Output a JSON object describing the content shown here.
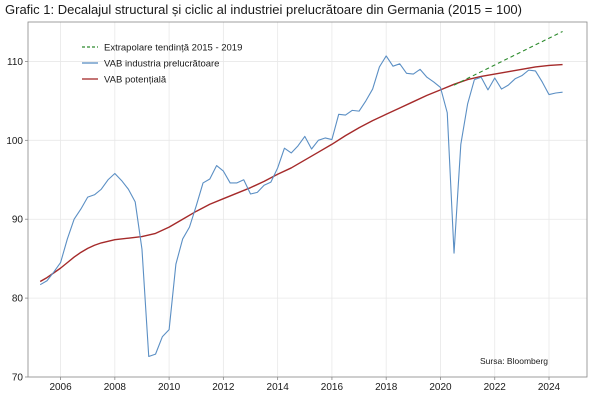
{
  "chart_data": {
    "type": "line",
    "title": "Grafic 1: Decalajul structural și ciclic al industriei prelucrătoare din Germania (2015 = 100)",
    "xlabel": "",
    "ylabel": "",
    "xlim": [
      2004.8,
      2025.4
    ],
    "ylim": [
      70,
      115
    ],
    "x_ticks": [
      2006,
      2008,
      2010,
      2012,
      2014,
      2016,
      2018,
      2020,
      2022,
      2024
    ],
    "x_tick_labels": [
      "2006",
      "2008",
      "2010",
      "2012",
      "2014",
      "2016",
      "2018",
      "2020",
      "2022",
      "2024"
    ],
    "y_ticks": [
      70,
      80,
      90,
      100,
      110
    ],
    "y_tick_labels": [
      "70",
      "80",
      "90",
      "100",
      "110"
    ],
    "grid": true,
    "legend_position": "top-left",
    "annotation": "Sursa: Bloomberg",
    "series": [
      {
        "name": "Extrapolare tendință 2015 - 2019",
        "color": "#2e8b2e",
        "style": "dashed",
        "points": [
          [
            2020.5,
            107.0
          ],
          [
            2024.5,
            113.8
          ]
        ]
      },
      {
        "name": "VAB industria prelucrătoare",
        "color": "#5b8fc4",
        "style": "solid",
        "points": [
          [
            2005.25,
            81.7
          ],
          [
            2005.5,
            82.2
          ],
          [
            2005.75,
            83.3
          ],
          [
            2006.0,
            84.5
          ],
          [
            2006.25,
            87.5
          ],
          [
            2006.5,
            90.0
          ],
          [
            2006.75,
            91.3
          ],
          [
            2007.0,
            92.8
          ],
          [
            2007.25,
            93.1
          ],
          [
            2007.5,
            93.8
          ],
          [
            2007.75,
            95.0
          ],
          [
            2008.0,
            95.8
          ],
          [
            2008.25,
            94.9
          ],
          [
            2008.5,
            93.8
          ],
          [
            2008.75,
            92.2
          ],
          [
            2009.0,
            86.2
          ],
          [
            2009.25,
            72.6
          ],
          [
            2009.5,
            72.9
          ],
          [
            2009.75,
            75.1
          ],
          [
            2010.0,
            76.0
          ],
          [
            2010.25,
            84.3
          ],
          [
            2010.5,
            87.5
          ],
          [
            2010.75,
            89.0
          ],
          [
            2011.0,
            91.7
          ],
          [
            2011.25,
            94.6
          ],
          [
            2011.5,
            95.1
          ],
          [
            2011.75,
            96.8
          ],
          [
            2012.0,
            96.1
          ],
          [
            2012.25,
            94.6
          ],
          [
            2012.5,
            94.6
          ],
          [
            2012.75,
            95.0
          ],
          [
            2013.0,
            93.2
          ],
          [
            2013.25,
            93.4
          ],
          [
            2013.5,
            94.3
          ],
          [
            2013.75,
            94.7
          ],
          [
            2014.0,
            96.5
          ],
          [
            2014.25,
            99.0
          ],
          [
            2014.5,
            98.4
          ],
          [
            2014.75,
            99.3
          ],
          [
            2015.0,
            100.5
          ],
          [
            2015.25,
            98.9
          ],
          [
            2015.5,
            100.0
          ],
          [
            2015.75,
            100.3
          ],
          [
            2016.0,
            100.1
          ],
          [
            2016.25,
            103.3
          ],
          [
            2016.5,
            103.2
          ],
          [
            2016.75,
            103.8
          ],
          [
            2017.0,
            103.7
          ],
          [
            2017.25,
            105.0
          ],
          [
            2017.5,
            106.5
          ],
          [
            2017.75,
            109.3
          ],
          [
            2018.0,
            110.7
          ],
          [
            2018.25,
            109.4
          ],
          [
            2018.5,
            109.7
          ],
          [
            2018.75,
            108.5
          ],
          [
            2019.0,
            108.4
          ],
          [
            2019.25,
            109.0
          ],
          [
            2019.5,
            108.0
          ],
          [
            2019.75,
            107.4
          ],
          [
            2020.0,
            106.7
          ],
          [
            2020.25,
            103.5
          ],
          [
            2020.5,
            85.7
          ],
          [
            2020.75,
            99.5
          ],
          [
            2021.0,
            104.6
          ],
          [
            2021.25,
            107.7
          ],
          [
            2021.5,
            108.0
          ],
          [
            2021.75,
            106.4
          ],
          [
            2022.0,
            107.9
          ],
          [
            2022.25,
            106.5
          ],
          [
            2022.5,
            107.0
          ],
          [
            2022.75,
            107.8
          ],
          [
            2023.0,
            108.2
          ],
          [
            2023.25,
            108.9
          ],
          [
            2023.5,
            108.8
          ],
          [
            2023.75,
            107.4
          ],
          [
            2024.0,
            105.8
          ],
          [
            2024.25,
            106.0
          ],
          [
            2024.5,
            106.1
          ]
        ]
      },
      {
        "name": "VAB potențială",
        "color": "#a52a2a",
        "style": "solid",
        "points": [
          [
            2005.25,
            82.1
          ],
          [
            2005.5,
            82.6
          ],
          [
            2005.75,
            83.2
          ],
          [
            2006.0,
            83.8
          ],
          [
            2006.25,
            84.5
          ],
          [
            2006.5,
            85.2
          ],
          [
            2006.75,
            85.8
          ],
          [
            2007.0,
            86.3
          ],
          [
            2007.25,
            86.7
          ],
          [
            2007.5,
            87.0
          ],
          [
            2007.75,
            87.2
          ],
          [
            2008.0,
            87.4
          ],
          [
            2008.5,
            87.6
          ],
          [
            2009.0,
            87.8
          ],
          [
            2009.5,
            88.2
          ],
          [
            2010.0,
            89.0
          ],
          [
            2010.5,
            90.0
          ],
          [
            2011.0,
            91.0
          ],
          [
            2011.5,
            91.9
          ],
          [
            2012.0,
            92.6
          ],
          [
            2012.5,
            93.3
          ],
          [
            2013.0,
            94.0
          ],
          [
            2013.5,
            94.8
          ],
          [
            2014.0,
            95.7
          ],
          [
            2014.5,
            96.5
          ],
          [
            2015.0,
            97.5
          ],
          [
            2015.5,
            98.5
          ],
          [
            2016.0,
            99.5
          ],
          [
            2016.5,
            100.6
          ],
          [
            2017.0,
            101.6
          ],
          [
            2017.5,
            102.5
          ],
          [
            2018.0,
            103.3
          ],
          [
            2018.5,
            104.1
          ],
          [
            2019.0,
            104.9
          ],
          [
            2019.5,
            105.7
          ],
          [
            2020.0,
            106.4
          ],
          [
            2020.5,
            107.1
          ],
          [
            2021.0,
            107.7
          ],
          [
            2021.5,
            108.1
          ],
          [
            2022.0,
            108.4
          ],
          [
            2022.5,
            108.7
          ],
          [
            2023.0,
            109.0
          ],
          [
            2023.5,
            109.3
          ],
          [
            2024.0,
            109.5
          ],
          [
            2024.5,
            109.6
          ]
        ]
      }
    ]
  }
}
